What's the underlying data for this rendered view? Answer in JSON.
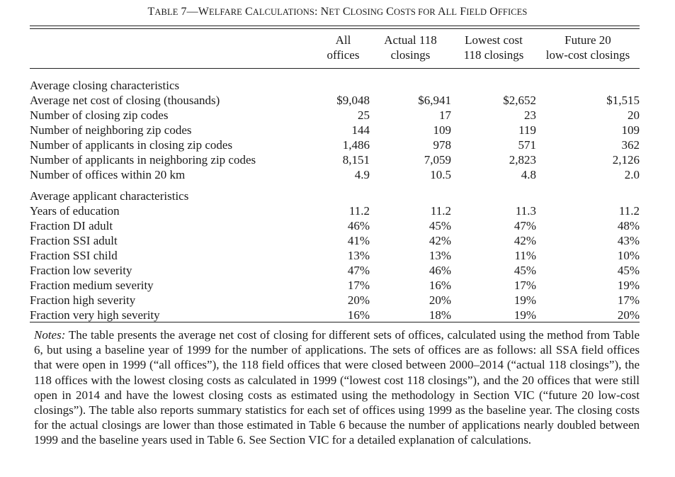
{
  "title": {
    "prefix": "T",
    "prefix_sc": "ABLE",
    "number": " 7—",
    "w1_big": "W",
    "w1_sc": "ELFARE",
    "w2_big": " C",
    "w2_sc": "ALCULATIONS",
    "w3_big": ": N",
    "w3_sc": "ET",
    "w4_big": " C",
    "w4_sc": "LOSING",
    "w5_big": " C",
    "w5_sc": "OSTS FOR",
    "w6_big": " A",
    "w6_sc": "LL",
    "w7_big": " F",
    "w7_sc": "IELD",
    "w8_big": " O",
    "w8_sc": "FFICES"
  },
  "columns": [
    {
      "line1": "All",
      "line2": "offices"
    },
    {
      "line1": "Actual 118",
      "line2": "closings"
    },
    {
      "line1": "Lowest cost",
      "line2": "118 closings"
    },
    {
      "line1": "Future 20",
      "line2": "low-cost closings"
    }
  ],
  "sections": [
    {
      "heading": "Average closing characteristics",
      "rows": [
        {
          "label": "Average net cost of closing (thousands)",
          "values": [
            "$9,048",
            "$6,941",
            "$2,652",
            "$1,515"
          ]
        },
        {
          "label": "Number of closing zip codes",
          "values": [
            "25",
            "17",
            "23",
            "20"
          ]
        },
        {
          "label": "Number of neighboring zip codes",
          "values": [
            "144",
            "109",
            "119",
            "109"
          ]
        },
        {
          "label": "Number of applicants in closing zip codes",
          "values": [
            "1,486",
            "978",
            "571",
            "362"
          ]
        },
        {
          "label": "Number of applicants in neighboring zip codes",
          "values": [
            "8,151",
            "7,059",
            "2,823",
            "2,126"
          ]
        },
        {
          "label": "Number of offices within 20 km",
          "values": [
            "4.9",
            "10.5",
            "4.8",
            "2.0"
          ]
        }
      ]
    },
    {
      "heading": "Average applicant characteristics",
      "rows": [
        {
          "label": "Years of education",
          "values": [
            "11.2",
            "11.2",
            "11.3",
            "11.2"
          ]
        },
        {
          "label": "Fraction DI adult",
          "values": [
            "46%",
            "45%",
            "47%",
            "48%"
          ]
        },
        {
          "label": "Fraction SSI adult",
          "values": [
            "41%",
            "42%",
            "42%",
            "43%"
          ]
        },
        {
          "label": "Fraction SSI child",
          "values": [
            "13%",
            "13%",
            "11%",
            "10%"
          ]
        },
        {
          "label": "Fraction low severity",
          "values": [
            "47%",
            "46%",
            "45%",
            "45%"
          ]
        },
        {
          "label": "Fraction medium severity",
          "values": [
            "17%",
            "16%",
            "17%",
            "19%"
          ]
        },
        {
          "label": "Fraction high severity",
          "values": [
            "20%",
            "20%",
            "19%",
            "17%"
          ]
        },
        {
          "label": "Fraction very high severity",
          "values": [
            "16%",
            "18%",
            "19%",
            "20%"
          ]
        }
      ]
    }
  ],
  "notes": {
    "label": "Notes:",
    "text": " The table presents the average net cost of closing for different sets of offices, calculated using the method from Table 6, but using a baseline year of 1999 for the number of applications. The sets of offices are as follows: all SSA field offices that were open in 1999 (“all offices”), the 118 field offices that were closed between 2000–2014 (“actual 118 closings”), the 118 offices with the lowest closing costs as calculated in 1999 (“lowest cost 118 closings”), and the 20 offices that were still open in 2014 and have the lowest closing costs as estimated using the methodology in Section VIC (“future 20 low-cost closings”). The table also reports summary statistics for each set of offices using 1999 as the baseline year. The closing costs for the actual closings are lower than those estimated in Table 6 because the number of applications nearly doubled between 1999 and the baseline years used in Table 6. See Section VIC for a detailed explanation of calculations."
  }
}
